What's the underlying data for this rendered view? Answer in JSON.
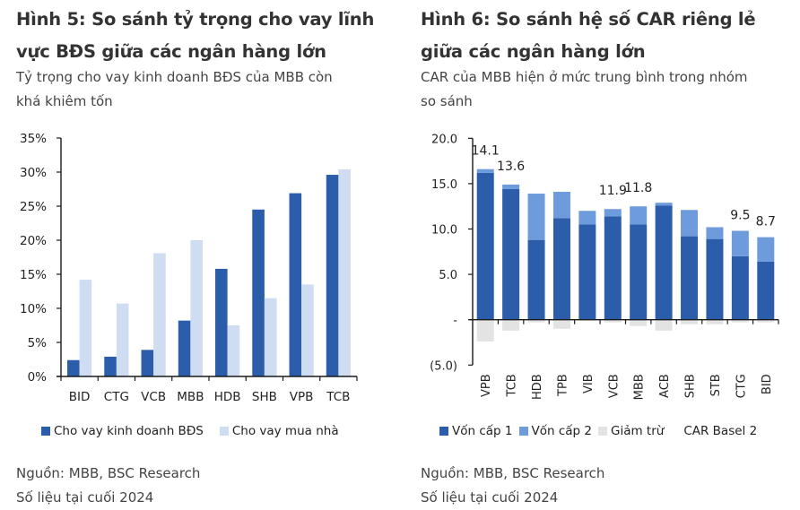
{
  "left": {
    "title": "Hình 5: So sánh tỷ trọng cho vay lĩnh vực BĐS giữa các ngân hàng lớn",
    "title_line1": "Hình 5: So sánh tỷ trọng cho vay lĩnh",
    "title_line2": "vực BĐS giữa các ngân hàng lớn",
    "subtitle_line1": "Tỷ trọng cho vay kinh doanh BĐS của MBB còn",
    "subtitle_line2": "khá khiêm tốn",
    "source": "Nguồn: MBB, BSC Research",
    "note": "Số liệu tại cuối 2024",
    "legend": [
      {
        "label": "Cho vay kinh doanh BĐS",
        "color": "#2B5DAA"
      },
      {
        "label": "Cho vay mua nhà",
        "color": "#CFDDF2"
      }
    ]
  },
  "right": {
    "title": "Hình 6: So sánh hệ số CAR riêng lẻ giữa các ngân hàng lớn",
    "title_line1": "Hình 6: So sánh hệ số CAR riêng lẻ",
    "title_line2": "giữa các ngân hàng lớn",
    "subtitle_line1": "CAR của MBB hiện ở mức trung bình trong nhóm",
    "subtitle_line2": "so sánh",
    "source": "Nguồn: MBB, BSC Research",
    "note": "Số liệu tại cuối 2024",
    "legend": [
      {
        "label": "Vốn cấp 1",
        "color": "#2B5DAA"
      },
      {
        "label": "Vốn cấp 2",
        "color": "#6E9BDC"
      },
      {
        "label": "Giảm trừ",
        "color": "#E3E3E3"
      },
      {
        "label": "CAR Basel 2",
        "color": null
      }
    ]
  },
  "chart_data": [
    {
      "type": "bar",
      "title": "Hình 5: So sánh tỷ trọng cho vay lĩnh vực BĐS giữa các ngân hàng lớn",
      "xlabel": "",
      "ylabel": "",
      "categories": [
        "BID",
        "CTG",
        "VCB",
        "MBB",
        "HDB",
        "SHB",
        "VPB",
        "TCB"
      ],
      "series": [
        {
          "name": "Cho vay kinh doanh BĐS",
          "color": "#2B5DAA",
          "values": [
            2.4,
            2.9,
            3.9,
            8.2,
            15.8,
            24.5,
            26.9,
            29.6
          ]
        },
        {
          "name": "Cho vay mua nhà",
          "color": "#CFDDF2",
          "values": [
            14.2,
            10.7,
            18.1,
            20.0,
            7.5,
            11.5,
            13.5,
            30.4
          ]
        }
      ],
      "ylim": [
        0,
        35
      ],
      "yticks": [
        0,
        5,
        10,
        15,
        20,
        25,
        30,
        35
      ],
      "ytick_labels": [
        "0%",
        "5%",
        "10%",
        "15%",
        "20%",
        "25%",
        "30%",
        "35%"
      ],
      "grid": false,
      "legend_position": "bottom"
    },
    {
      "type": "bar",
      "stacked": true,
      "title": "Hình 6: So sánh hệ số CAR riêng lẻ giữa các ngân hàng lớn",
      "xlabel": "",
      "ylabel": "",
      "categories": [
        "VPB",
        "TCB",
        "HDB",
        "TPB",
        "VIB",
        "VCB",
        "MBB",
        "ACB",
        "SHB",
        "STB",
        "CTG",
        "BID"
      ],
      "series": [
        {
          "name": "Vốn cấp 1",
          "color": "#2B5DAA",
          "values": [
            16.2,
            14.4,
            8.8,
            11.2,
            10.5,
            11.4,
            10.5,
            12.6,
            9.2,
            8.9,
            7.0,
            6.4
          ]
        },
        {
          "name": "Vốn cấp 2",
          "color": "#6E9BDC",
          "values": [
            0.4,
            0.5,
            5.1,
            2.9,
            1.5,
            0.8,
            2.0,
            0.3,
            2.9,
            1.3,
            2.8,
            2.7
          ]
        },
        {
          "name": "Giảm trừ",
          "color": "#E3E3E3",
          "values": [
            -2.4,
            -1.2,
            -0.3,
            -1.0,
            -0.1,
            -0.3,
            -0.7,
            -1.2,
            -0.5,
            -0.5,
            -0.3,
            -0.3
          ]
        }
      ],
      "car_basel2_labels": [
        {
          "category": "VPB",
          "value": 14.1
        },
        {
          "category": "TCB",
          "value": 13.6
        },
        {
          "category": "VCB",
          "value": 11.9
        },
        {
          "category": "MBB",
          "value": 11.8
        },
        {
          "category": "CTG",
          "value": 9.5
        },
        {
          "category": "BID",
          "value": 8.7
        }
      ],
      "ylim": [
        -5,
        20
      ],
      "yticks": [
        -5,
        0,
        5,
        10,
        15,
        20
      ],
      "ytick_labels": [
        "(5.0)",
        "-",
        "5.0",
        "10.0",
        "15.0",
        "20.0"
      ],
      "grid": false,
      "legend_position": "bottom"
    }
  ]
}
